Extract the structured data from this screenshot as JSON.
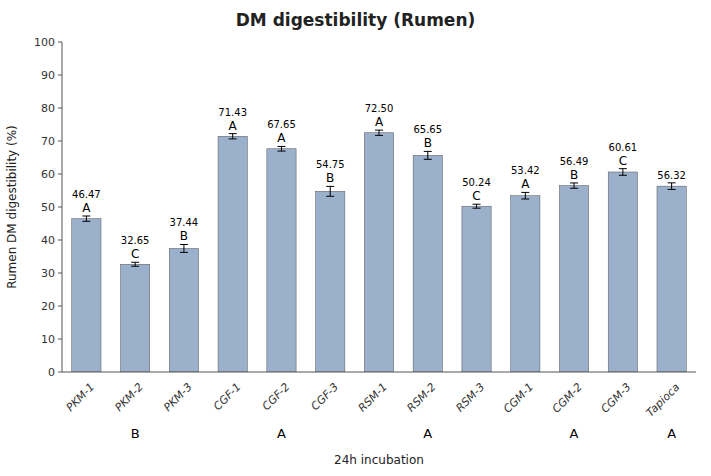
{
  "chart_data": {
    "type": "bar",
    "title": "DM digestibility (Rumen)",
    "ylabel": "Rumen DM digestibility (%)",
    "xlabel": "24h incubation",
    "categories": [
      "PKM-1",
      "PKM-2",
      "PKM-3",
      "CGF-1",
      "CGF-2",
      "CGF-3",
      "RSM-1",
      "RSM-2",
      "RSM-3",
      "CGM-1",
      "CGM-2",
      "CGM-3",
      "Tapioca"
    ],
    "values": [
      46.47,
      32.65,
      37.44,
      71.43,
      67.65,
      54.75,
      72.5,
      65.65,
      50.24,
      53.42,
      56.49,
      60.61,
      56.32
    ],
    "value_labels": [
      "46.47",
      "32.65",
      "37.44",
      "71.43",
      "67.65",
      "54.75",
      "72.50",
      "65.65",
      "50.24",
      "53.42",
      "56.49",
      "60.61",
      "56.32"
    ],
    "errors": [
      0.8,
      0.6,
      1.2,
      0.8,
      0.7,
      1.5,
      0.8,
      1.2,
      0.6,
      1.0,
      0.8,
      1.0,
      1.0
    ],
    "significance_labels": [
      "A",
      "C",
      "B",
      "A",
      "A",
      "B",
      "A",
      "B",
      "C",
      "A",
      "B",
      "C",
      null
    ],
    "groups": [
      {
        "label": "B",
        "from": "PKM-1",
        "to": "PKM-3"
      },
      {
        "label": "A",
        "from": "CGF-1",
        "to": "CGF-3"
      },
      {
        "label": "A",
        "from": "RSM-1",
        "to": "RSM-3"
      },
      {
        "label": "A",
        "from": "CGM-1",
        "to": "CGM-3"
      },
      {
        "label": "A",
        "from": "Tapioca",
        "to": "Tapioca"
      }
    ],
    "color": "#9BB0CB",
    "ylim": [
      0,
      100
    ],
    "yticks": [
      0,
      10,
      20,
      30,
      40,
      50,
      60,
      70,
      80,
      90,
      100
    ],
    "grid": false,
    "data_labels": true
  }
}
